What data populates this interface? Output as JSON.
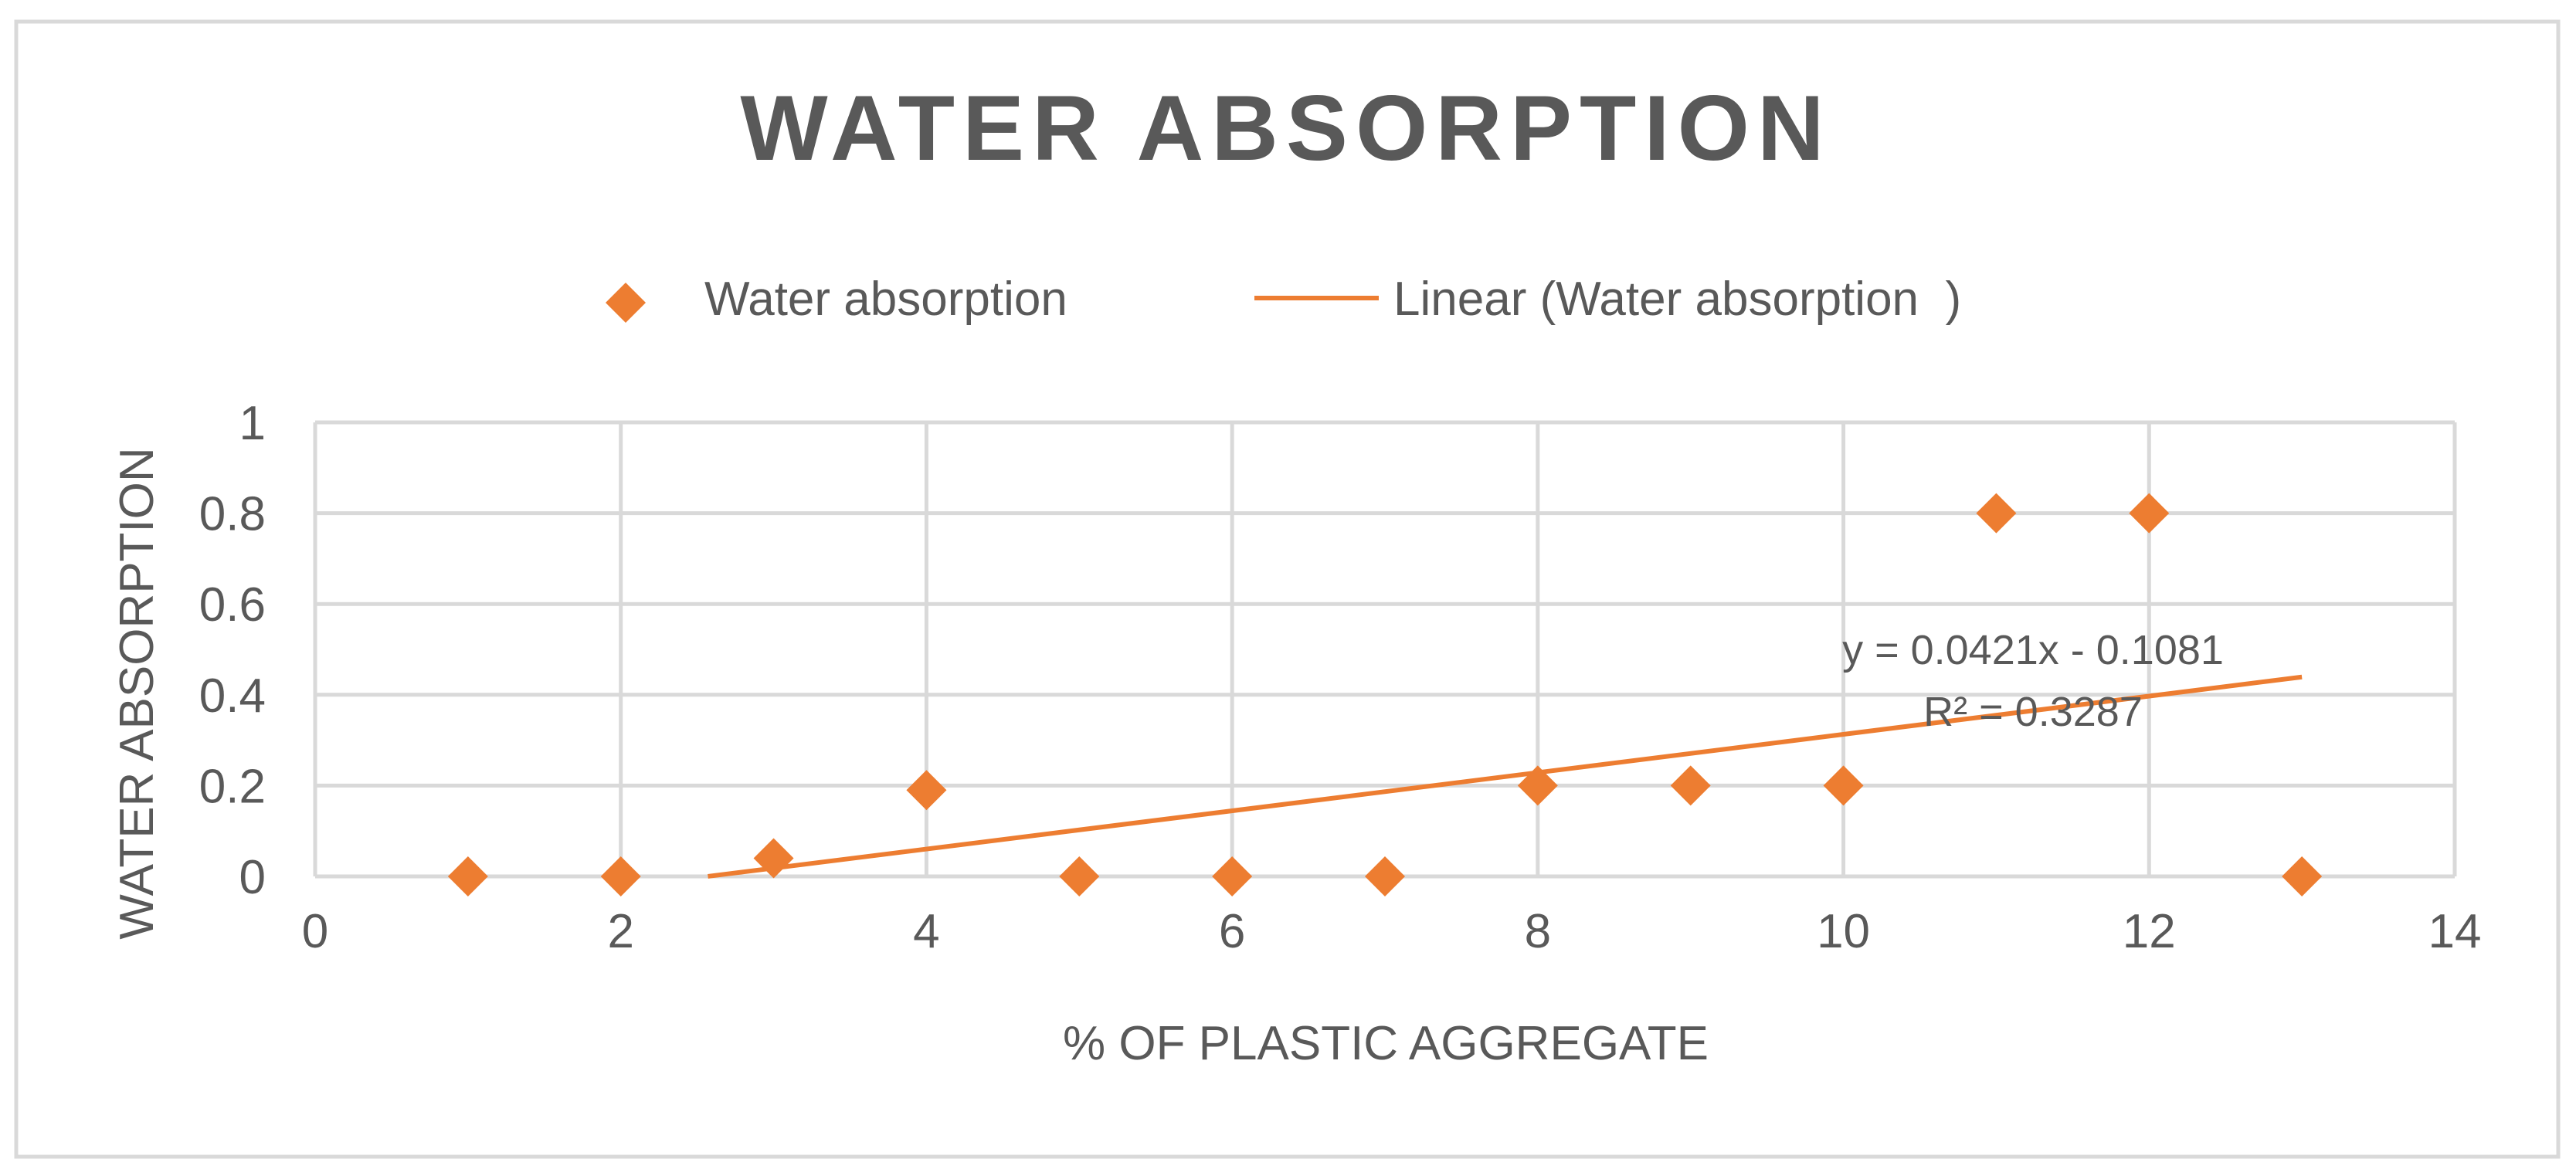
{
  "chart_data": {
    "type": "scatter",
    "title": "WATER ABSORPTION",
    "xlabel": "% OF PLASTIC AGGREGATE",
    "ylabel": "WATER ABSORPTION",
    "xlim": [
      0,
      14
    ],
    "ylim": [
      0,
      1
    ],
    "x_ticks": [
      "0",
      "2",
      "4",
      "6",
      "8",
      "10",
      "12",
      "14"
    ],
    "y_ticks": [
      "0",
      "0.2",
      "0.4",
      "0.6",
      "0.8",
      "1"
    ],
    "x_tick_values": [
      0,
      2,
      4,
      6,
      8,
      10,
      12,
      14
    ],
    "y_tick_values": [
      0,
      0.2,
      0.4,
      0.6,
      0.8,
      1
    ],
    "grid": true,
    "legend_position": "top",
    "series": [
      {
        "name": "Water absorption",
        "marker": "diamond",
        "color": "#ED7D31",
        "x": [
          1,
          2,
          3,
          4,
          5,
          6,
          7,
          8,
          9,
          10,
          11,
          12,
          13
        ],
        "y": [
          0,
          0,
          0.04,
          0.19,
          0,
          0,
          0,
          0.2,
          0.2,
          0.2,
          0.8,
          0.8,
          0
        ]
      }
    ],
    "trendline": {
      "name": "Linear (Water absorption  )",
      "type": "linear",
      "color": "#ED7D31",
      "slope": 0.0421,
      "intercept": -0.1081,
      "x_range": [
        2.57,
        13
      ],
      "equation": "y = 0.0421x - 0.1081",
      "r_squared": "R² = 0.3287"
    },
    "colors": {
      "title": "#595959",
      "text": "#595959",
      "grid": "#D9D9D9",
      "frame": "#D9D9D9",
      "accent": "#ED7D31"
    }
  }
}
